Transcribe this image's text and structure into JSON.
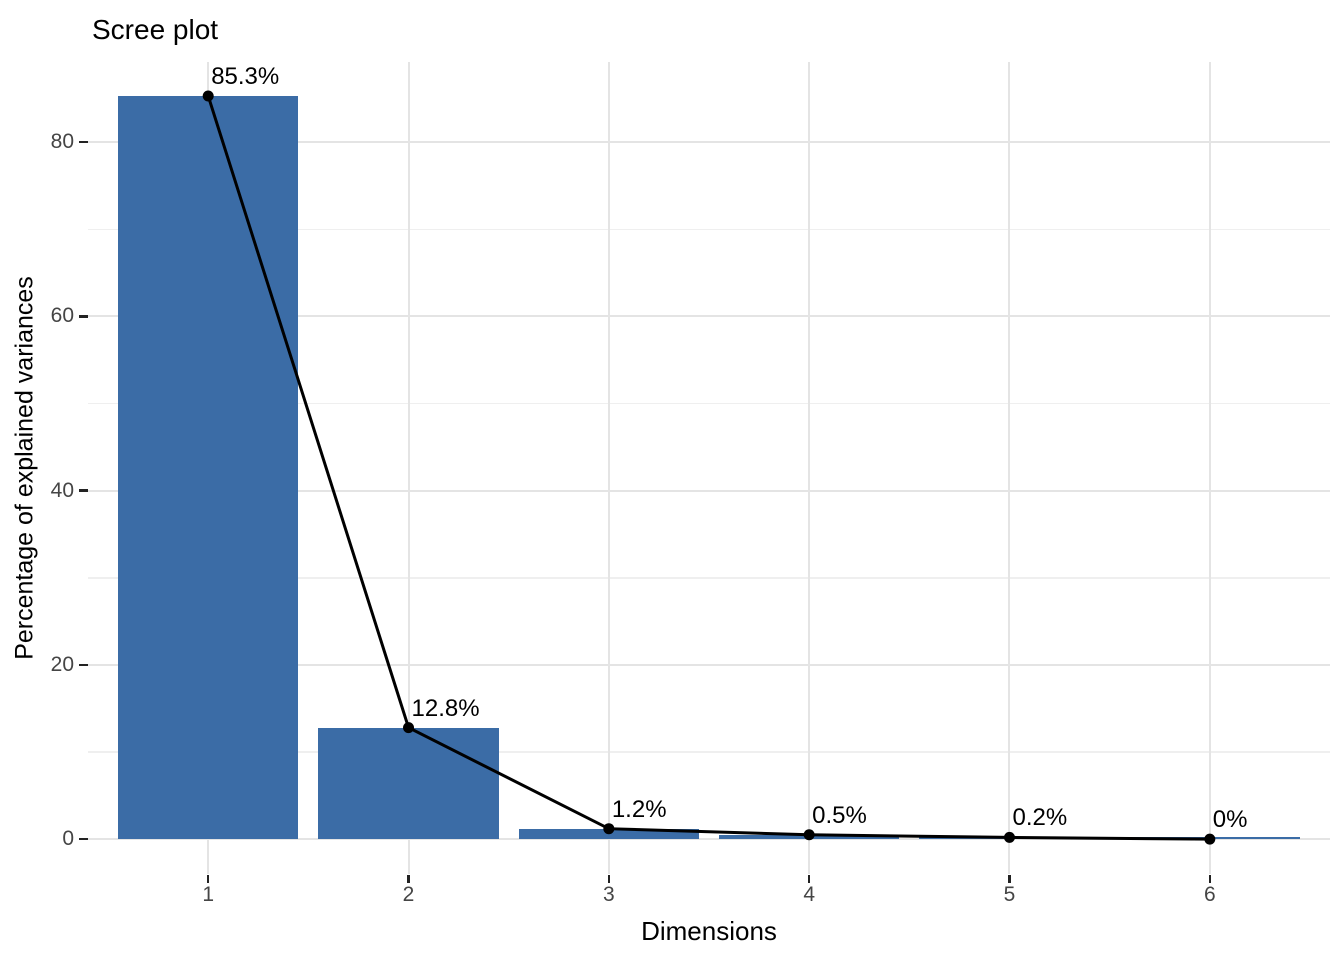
{
  "chart_data": {
    "type": "bar",
    "overlay": "line-with-points",
    "title": "Scree plot",
    "xlabel": "Dimensions",
    "ylabel": "Percentage of explained variances",
    "categories": [
      "1",
      "2",
      "3",
      "4",
      "5",
      "6"
    ],
    "values": [
      85.3,
      12.8,
      1.2,
      0.5,
      0.2,
      0
    ],
    "point_labels": [
      "85.3%",
      "12.8%",
      "1.2%",
      "0.5%",
      "0.2%",
      "0%"
    ],
    "y_ticks_major": [
      0,
      20,
      40,
      60,
      80
    ],
    "y_ticks_minor": [
      10,
      30,
      50,
      70
    ],
    "ylim": [
      -4,
      89.2
    ],
    "grid": "on",
    "legend": "none",
    "colors": {
      "bar_fill": "#3b6ca6",
      "line": "#000000",
      "point": "#000000",
      "grid_major": "#e4e4e4",
      "grid_minor": "#efefef",
      "tick_mark": "#222222",
      "tick_label": "#454545",
      "text": "#000000",
      "background": "#ffffff"
    }
  }
}
